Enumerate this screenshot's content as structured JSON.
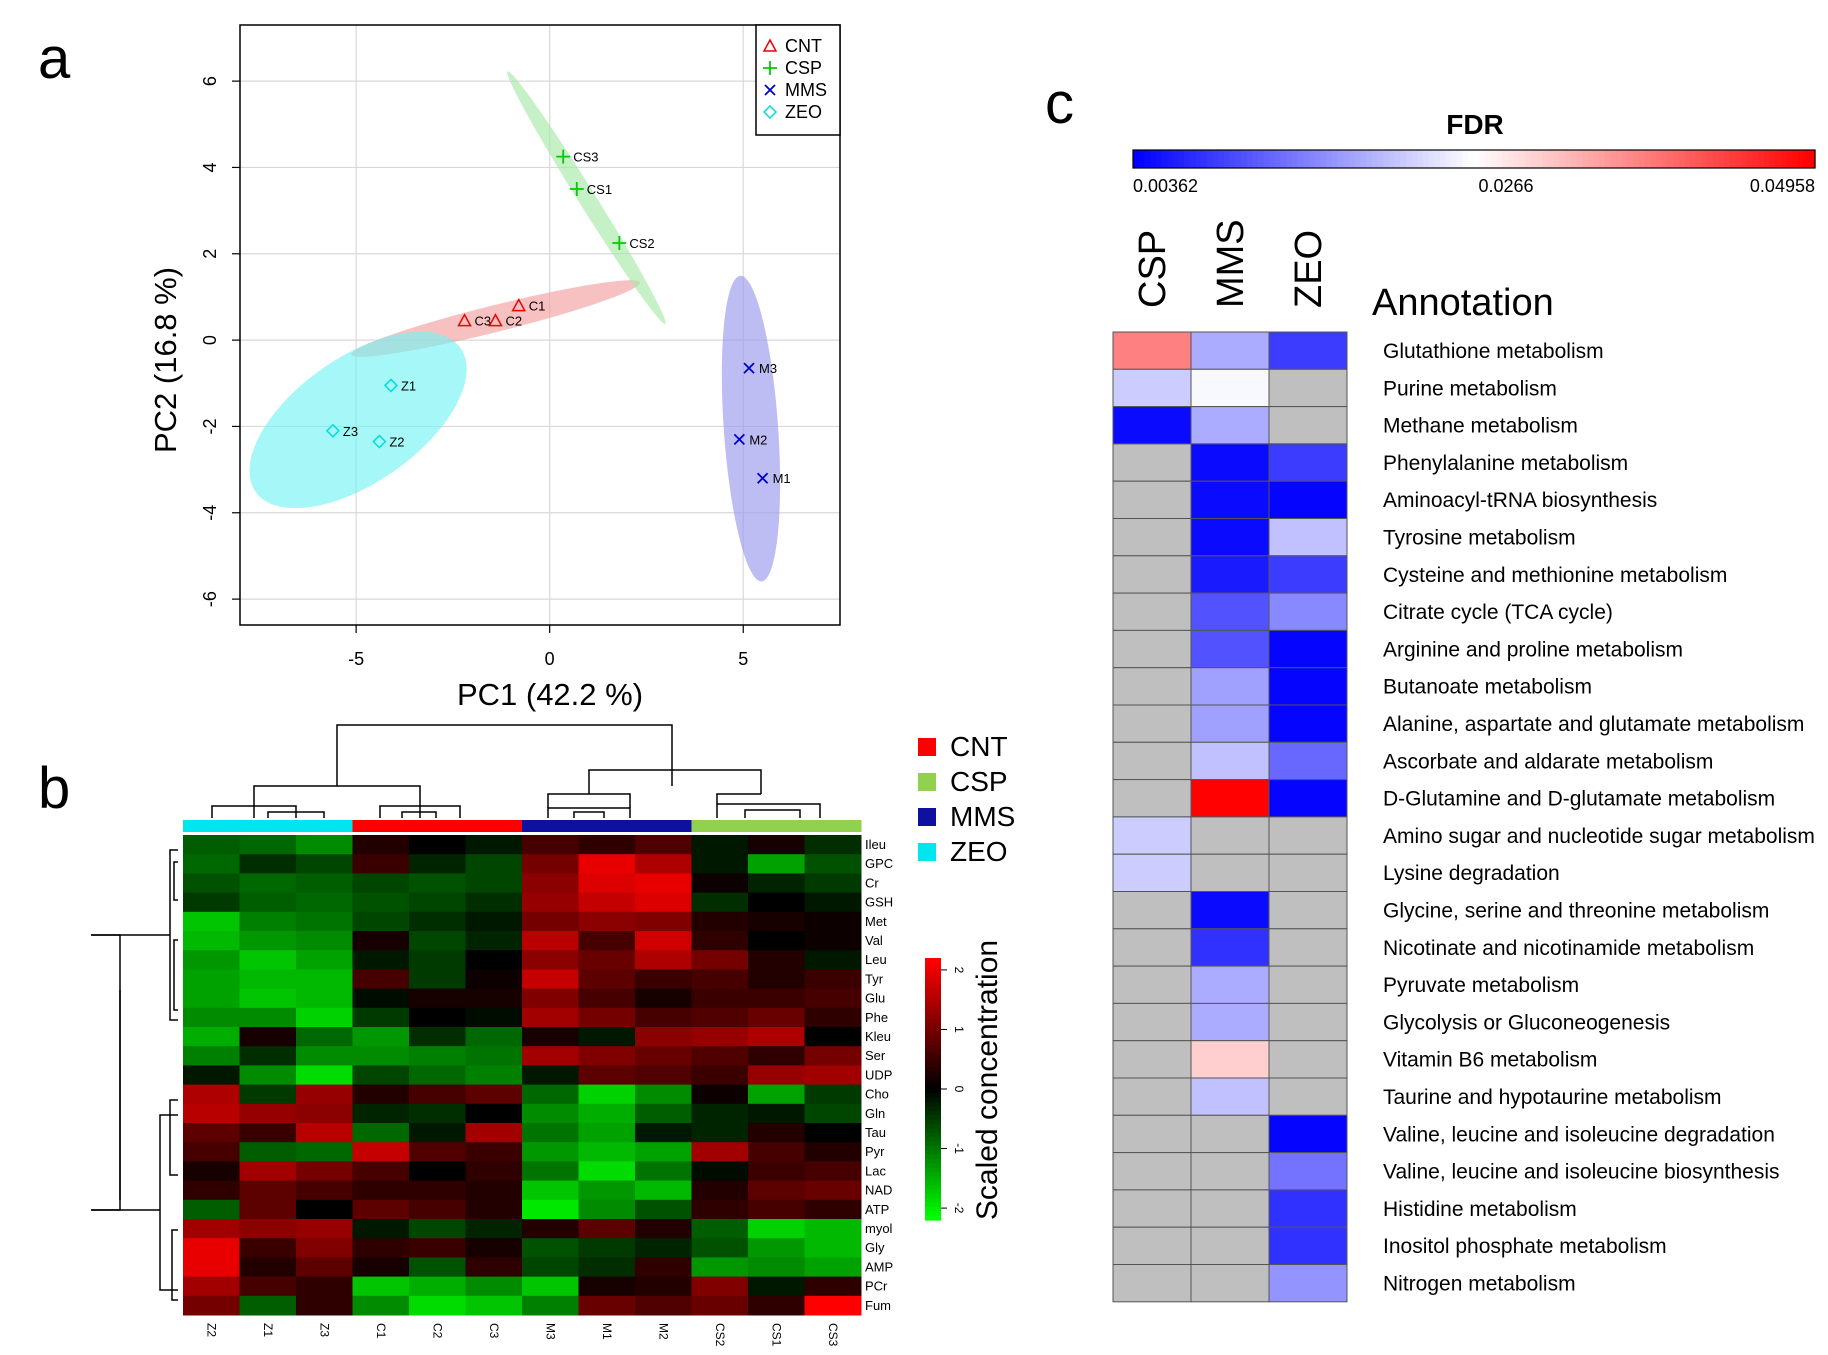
{
  "panel_labels": {
    "a": "a",
    "b": "b",
    "c": "c"
  },
  "colors": {
    "CNT": "#ee0000",
    "CSP": "#00cc00",
    "MMS": "#0000cc",
    "ZEO": "#00dddd",
    "ell_CNT": "#f4a0a0",
    "ell_CSP": "#a8e8a8",
    "ell_MMS": "#9999ee",
    "ell_ZEO": "#77f2f2",
    "legend_CNT": "#ff0000",
    "legend_CSP": "#92d050",
    "legend_MMS": "#1010a0",
    "legend_ZEO": "#00e5ee",
    "grey": "#bfbfbf"
  },
  "chart_data": [
    {
      "type": "scatter",
      "title": "",
      "xlabel": "PC1 (42.2 %)",
      "ylabel": "PC2 (16.8 %)",
      "xlim": [
        -8,
        7.5
      ],
      "ylim": [
        -6.6,
        7.3
      ],
      "xticks": [
        -5,
        0,
        5
      ],
      "yticks": [
        -6,
        -4,
        -2,
        0,
        2,
        4,
        6
      ],
      "xtick_labels": [
        "-5",
        "0",
        "5"
      ],
      "ytick_labels": [
        "-6",
        "-4",
        "-2",
        "0",
        "2",
        "4",
        "6"
      ],
      "grid": true,
      "legend_position": "top-right",
      "series": [
        {
          "name": "CNT",
          "marker": "triangle",
          "points": [
            {
              "label": "C1",
              "x": -0.8,
              "y": 0.8
            },
            {
              "label": "C3",
              "x": -2.2,
              "y": 0.45
            },
            {
              "label": "C2",
              "x": -1.4,
              "y": 0.45
            }
          ],
          "ellipse": {
            "cx": -1.4,
            "cy": 0.5,
            "rx": 3.45,
            "ry": 0.31,
            "angle_deg": 14
          }
        },
        {
          "name": "CSP",
          "marker": "plus",
          "points": [
            {
              "label": "CS3",
              "x": 0.35,
              "y": 4.25
            },
            {
              "label": "CS1",
              "x": 0.7,
              "y": 3.5
            },
            {
              "label": "CS2",
              "x": 1.8,
              "y": 2.25
            }
          ],
          "ellipse": {
            "cx": 0.95,
            "cy": 3.3,
            "rx": 3.45,
            "ry": 0.2,
            "angle_deg": -58
          }
        },
        {
          "name": "MMS",
          "marker": "x",
          "points": [
            {
              "label": "M3",
              "x": 5.15,
              "y": -0.65
            },
            {
              "label": "M2",
              "x": 4.9,
              "y": -2.3
            },
            {
              "label": "M1",
              "x": 5.5,
              "y": -3.2
            }
          ],
          "ellipse": {
            "cx": 5.2,
            "cy": -2.05,
            "rx": 3.55,
            "ry": 0.63,
            "angle_deg": -86
          }
        },
        {
          "name": "ZEO",
          "marker": "diamond",
          "points": [
            {
              "label": "Z1",
              "x": -4.1,
              "y": -1.05
            },
            {
              "label": "Z3",
              "x": -5.6,
              "y": -2.1
            },
            {
              "label": "Z2",
              "x": -4.4,
              "y": -2.35
            }
          ],
          "ellipse": {
            "cx": -4.95,
            "cy": -1.85,
            "rx": 2.9,
            "ry": 1.45,
            "angle_deg": 35
          }
        }
      ]
    },
    {
      "type": "heatmap",
      "title": "",
      "colorbar_label": "Scaled concentration",
      "colorbar_ticks": [
        2,
        1,
        0,
        -1,
        -2
      ],
      "colorbar_tick_labels": [
        "2",
        "1",
        "0",
        "-1",
        "-2"
      ],
      "value_range": [
        -2.2,
        2.2
      ],
      "legend": [
        {
          "name": "CNT"
        },
        {
          "name": "CSP"
        },
        {
          "name": "MMS"
        },
        {
          "name": "ZEO"
        }
      ],
      "columns": [
        "Z2",
        "Z1",
        "Z3",
        "C1",
        "C2",
        "C3",
        "M3",
        "M1",
        "M2",
        "CS2",
        "CS1",
        "CS3"
      ],
      "column_groups": [
        "ZEO",
        "ZEO",
        "ZEO",
        "CNT",
        "CNT",
        "CNT",
        "MMS",
        "MMS",
        "MMS",
        "CSP",
        "CSP",
        "CSP"
      ],
      "rows": [
        "Ileu",
        "GPC",
        "Cr",
        "GSH",
        "Met",
        "Val",
        "Leu",
        "Tyr",
        "Glu",
        "Phe",
        "Kleu",
        "Ser",
        "UDP",
        "Cho",
        "Gln",
        "Tau",
        "Pyr",
        "Lac",
        "NAD",
        "ATP",
        "myol",
        "Gly",
        "AMP",
        "PCr",
        "Fum"
      ],
      "values": [
        [
          -0.8,
          -0.9,
          -1.2,
          0.3,
          0.0,
          -0.2,
          0.6,
          0.4,
          0.7,
          -0.2,
          0.2,
          -0.4
        ],
        [
          -0.9,
          -0.4,
          -0.6,
          0.5,
          -0.3,
          -0.6,
          1.0,
          2.0,
          1.5,
          -0.2,
          -1.4,
          -0.7
        ],
        [
          -0.7,
          -0.9,
          -0.8,
          -0.6,
          -0.7,
          -0.6,
          1.2,
          1.9,
          2.0,
          0.1,
          -0.3,
          -0.5
        ],
        [
          -0.5,
          -0.8,
          -0.9,
          -0.7,
          -0.6,
          -0.4,
          1.3,
          1.7,
          1.9,
          -0.4,
          0.0,
          -0.2
        ],
        [
          -1.7,
          -1.1,
          -1.0,
          -0.6,
          -0.4,
          -0.2,
          1.0,
          1.2,
          1.1,
          0.3,
          0.2,
          0.1
        ],
        [
          -1.6,
          -1.3,
          -1.2,
          0.2,
          -0.6,
          -0.3,
          1.6,
          0.6,
          1.8,
          0.4,
          0.0,
          0.1
        ],
        [
          -1.3,
          -1.7,
          -1.4,
          -0.2,
          -0.5,
          0.0,
          1.2,
          0.9,
          1.5,
          1.0,
          0.3,
          -0.2
        ],
        [
          -1.4,
          -1.6,
          -1.6,
          0.6,
          -0.5,
          0.1,
          1.7,
          0.8,
          0.5,
          0.6,
          0.3,
          0.5
        ],
        [
          -1.4,
          -1.7,
          -1.6,
          -0.1,
          0.2,
          0.2,
          1.1,
          0.6,
          0.2,
          0.5,
          0.5,
          0.6
        ],
        [
          -1.2,
          -1.2,
          -1.8,
          -0.5,
          0.0,
          -0.1,
          1.4,
          1.0,
          0.6,
          0.7,
          0.9,
          0.4
        ],
        [
          -1.5,
          0.2,
          -0.9,
          -1.3,
          -0.4,
          -0.9,
          0.2,
          -0.2,
          1.2,
          1.3,
          1.5,
          0.0
        ],
        [
          -1.1,
          -0.4,
          -1.2,
          -1.2,
          -1.1,
          -1.0,
          1.4,
          1.1,
          0.9,
          0.7,
          0.4,
          1.0
        ],
        [
          -0.2,
          -1.2,
          -1.9,
          -0.6,
          -0.9,
          -1.1,
          -0.2,
          0.8,
          0.7,
          0.5,
          1.3,
          1.4
        ],
        [
          1.5,
          -0.5,
          1.3,
          0.3,
          0.6,
          0.8,
          -0.9,
          -1.8,
          -1.2,
          0.1,
          -1.4,
          -0.5
        ],
        [
          1.6,
          1.3,
          1.2,
          -0.3,
          -0.4,
          0.0,
          -1.2,
          -1.5,
          -0.8,
          -0.3,
          -0.2,
          -0.6
        ],
        [
          0.8,
          0.5,
          1.6,
          -0.9,
          -0.2,
          1.4,
          -1.0,
          -1.4,
          -0.2,
          -0.3,
          0.3,
          0.0
        ],
        [
          0.6,
          -0.8,
          -0.9,
          1.7,
          0.7,
          0.5,
          -1.3,
          -1.6,
          -1.4,
          1.4,
          0.6,
          0.3
        ],
        [
          0.2,
          1.4,
          1.0,
          0.6,
          0.0,
          0.4,
          -1.0,
          -1.9,
          -1.0,
          -0.1,
          0.5,
          0.6
        ],
        [
          0.4,
          0.8,
          0.6,
          0.4,
          0.4,
          0.3,
          -1.7,
          -1.3,
          -1.6,
          0.3,
          0.8,
          0.9
        ],
        [
          -0.8,
          0.8,
          0.0,
          0.8,
          0.6,
          0.3,
          -2.0,
          -1.2,
          -0.7,
          0.4,
          0.6,
          0.4
        ],
        [
          1.4,
          1.2,
          1.3,
          -0.2,
          -0.6,
          -0.3,
          0.3,
          0.8,
          0.3,
          -0.8,
          -1.8,
          -1.6
        ],
        [
          2.0,
          0.5,
          1.1,
          0.4,
          0.5,
          0.2,
          -0.7,
          -0.5,
          -0.3,
          -0.7,
          -1.3,
          -1.6
        ],
        [
          2.0,
          0.3,
          0.8,
          0.2,
          -0.7,
          0.4,
          -0.6,
          -0.4,
          0.4,
          -1.3,
          -1.2,
          -1.4
        ],
        [
          1.4,
          0.6,
          0.4,
          -1.7,
          -1.5,
          -1.2,
          -1.7,
          0.2,
          0.3,
          1.1,
          -0.2,
          0.4
        ],
        [
          1.0,
          -0.8,
          0.4,
          -1.2,
          -1.9,
          -1.7,
          -1.1,
          0.9,
          0.7,
          0.9,
          0.4,
          2.2
        ]
      ]
    },
    {
      "type": "heatmap",
      "title": "FDR",
      "colorbar_tick_labels": [
        "0.00362",
        "0.0266",
        "0.04958"
      ],
      "value_range": [
        0.00362,
        0.04958
      ],
      "missing_color": "grey",
      "columns": [
        "CSP",
        "MMS",
        "ZEO"
      ],
      "annotation_title": "Annotation",
      "rows": [
        "Glutathione metabolism",
        "Purine metabolism",
        "Methane metabolism",
        "Phenylalanine metabolism",
        "Aminoacyl-tRNA biosynthesis",
        "Tyrosine metabolism",
        "Cysteine and methionine metabolism",
        "Citrate cycle (TCA cycle)",
        "Arginine and proline metabolism",
        "Butanoate metabolism",
        "Alanine, aspartate and glutamate metabolism",
        "Ascorbate and aldarate metabolism",
        "D-Glutamine and D-glutamate metabolism",
        "Amino sugar and nucleotide sugar metabolism",
        "Lysine degradation",
        "Glycine, serine and threonine metabolism",
        "Nicotinate and nicotinamide metabolism",
        "Pyruvate metabolism",
        "Glycolysis or Gluconeogenesis",
        "Vitamin B6 metabolism",
        "Taurine and hypotaurine metabolism",
        "Valine, leucine and isoleucine degradation",
        "Valine, leucine and isoleucine biosynthesis",
        "Histidine metabolism",
        "Inositol phosphate metabolism",
        "Nitrogen metabolism"
      ],
      "values": [
        [
          0.038,
          0.019,
          0.009
        ],
        [
          0.022,
          0.026,
          null
        ],
        [
          0.0045,
          0.019,
          null
        ],
        [
          null,
          0.0045,
          0.009
        ],
        [
          null,
          0.0045,
          0.004
        ],
        [
          null,
          0.0045,
          0.021
        ],
        [
          null,
          0.006,
          0.009
        ],
        [
          null,
          0.011,
          0.016
        ],
        [
          null,
          0.011,
          0.004
        ],
        [
          null,
          0.018,
          0.004
        ],
        [
          null,
          0.018,
          0.004
        ],
        [
          null,
          0.021,
          0.013
        ],
        [
          null,
          0.0495,
          0.004
        ],
        [
          0.022,
          null,
          null
        ],
        [
          0.022,
          null,
          null
        ],
        [
          null,
          0.0045,
          null
        ],
        [
          null,
          0.008,
          null
        ],
        [
          null,
          0.019,
          null
        ],
        [
          null,
          0.019,
          null
        ],
        [
          null,
          0.031,
          null
        ],
        [
          null,
          0.021,
          null
        ],
        [
          null,
          null,
          0.004
        ],
        [
          null,
          null,
          0.014
        ],
        [
          null,
          null,
          0.008
        ],
        [
          null,
          null,
          0.008
        ],
        [
          null,
          null,
          0.017
        ]
      ]
    }
  ]
}
